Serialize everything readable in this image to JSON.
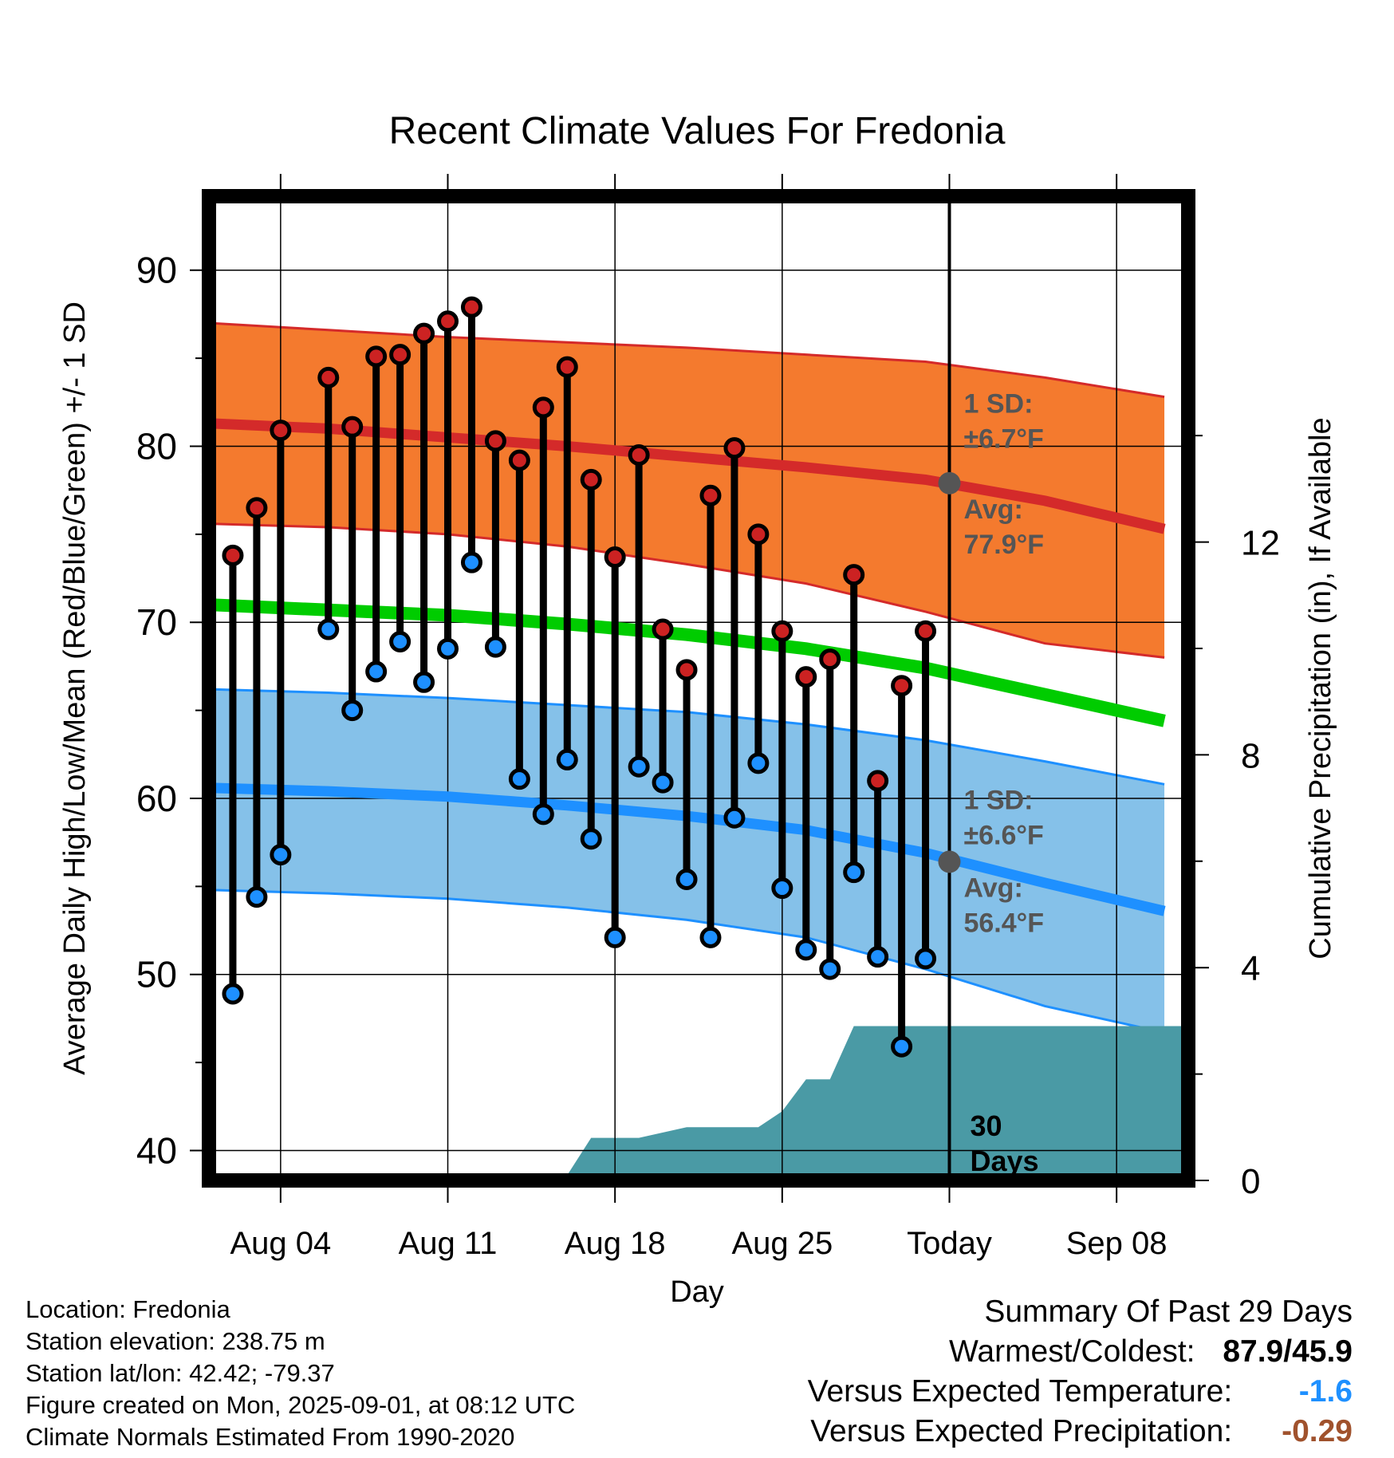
{
  "chart_data": {
    "type": "line",
    "title": "Recent Climate Values For Fredonia",
    "xlabel": "Day",
    "ylabel": "Average Daily High/Low/Mean (Red/Blue/Green) +/- 1 SD",
    "y2label": "Cumulative Precipitation (in), If Available",
    "ylim": [
      38.3,
      94.2
    ],
    "y_ticks": [
      "40",
      "50",
      "60",
      "70",
      "80",
      "90"
    ],
    "y2lim": [
      0,
      18.5
    ],
    "y2_ticks": [
      "0",
      "4",
      "8",
      "12"
    ],
    "x_range": [
      "2025-08-01",
      "2025-09-11"
    ],
    "x_ticks": [
      {
        "date": "2025-08-04",
        "label": "Aug 04"
      },
      {
        "date": "2025-08-11",
        "label": "Aug 11"
      },
      {
        "date": "2025-08-18",
        "label": "Aug 18"
      },
      {
        "date": "2025-08-25",
        "label": "Aug 25"
      },
      {
        "date": "2025-09-01",
        "label": "Today"
      },
      {
        "date": "2025-09-08",
        "label": "Sep 08"
      }
    ],
    "grid": true,
    "today": "2025-09-01",
    "today_label": "30\nDays",
    "normals": {
      "dates": [
        "2025-08-01",
        "2025-08-06",
        "2025-08-11",
        "2025-08-16",
        "2025-08-21",
        "2025-08-26",
        "2025-08-31",
        "2025-09-05",
        "2025-09-10"
      ],
      "high_mean": [
        81.3,
        81.0,
        80.5,
        80.0,
        79.4,
        78.8,
        78.1,
        76.9,
        75.3
      ],
      "high_upper": [
        87.0,
        86.6,
        86.2,
        85.9,
        85.6,
        85.2,
        84.8,
        83.9,
        82.8
      ],
      "high_lower": [
        75.6,
        75.4,
        75.0,
        74.3,
        73.3,
        72.2,
        70.6,
        68.8,
        68.0
      ],
      "low_mean": [
        60.6,
        60.4,
        60.1,
        59.6,
        59.0,
        58.2,
        56.9,
        55.2,
        53.6
      ],
      "low_upper": [
        66.2,
        66.0,
        65.7,
        65.3,
        64.9,
        64.2,
        63.3,
        62.1,
        60.8
      ],
      "low_lower": [
        54.8,
        54.6,
        54.3,
        53.8,
        53.1,
        52.1,
        50.3,
        48.2,
        46.7
      ],
      "mean": [
        71.0,
        70.7,
        70.4,
        69.9,
        69.3,
        68.5,
        67.4,
        65.9,
        64.4
      ],
      "high_sd_label": "1 SD:",
      "high_sd_value": "±6.7°F",
      "high_avg_label": "Avg:",
      "high_avg_value": "77.9°F",
      "high_avg_today": 77.9,
      "low_sd_label": "1 SD:",
      "low_sd_value": "±6.6°F",
      "low_avg_label": "Avg:",
      "low_avg_value": "56.4°F",
      "low_avg_today": 56.4
    },
    "observed": {
      "dates": [
        "2025-08-02",
        "2025-08-03",
        "2025-08-04",
        "2025-08-06",
        "2025-08-07",
        "2025-08-08",
        "2025-08-09",
        "2025-08-10",
        "2025-08-11",
        "2025-08-12",
        "2025-08-13",
        "2025-08-14",
        "2025-08-15",
        "2025-08-16",
        "2025-08-17",
        "2025-08-18",
        "2025-08-19",
        "2025-08-20",
        "2025-08-21",
        "2025-08-22",
        "2025-08-23",
        "2025-08-24",
        "2025-08-25",
        "2025-08-26",
        "2025-08-27",
        "2025-08-28",
        "2025-08-29",
        "2025-08-30",
        "2025-08-31"
      ],
      "high": [
        73.8,
        76.5,
        80.9,
        83.9,
        81.1,
        85.1,
        85.2,
        86.4,
        87.1,
        87.9,
        80.3,
        79.2,
        82.2,
        84.5,
        78.1,
        73.7,
        79.5,
        69.6,
        67.3,
        77.2,
        79.9,
        75.0,
        69.5,
        66.9,
        67.9,
        72.7,
        61.0,
        66.4,
        69.5
      ],
      "low": [
        48.9,
        54.4,
        56.8,
        69.6,
        65.0,
        67.2,
        68.9,
        66.6,
        68.5,
        73.4,
        68.6,
        61.1,
        59.1,
        62.2,
        57.7,
        52.1,
        61.8,
        60.9,
        55.4,
        52.1,
        58.9,
        62.0,
        54.9,
        51.4,
        50.3,
        55.8,
        51.0,
        45.9,
        50.9
      ]
    },
    "precip": {
      "dates": [
        "2025-08-12",
        "2025-08-13",
        "2025-08-16",
        "2025-08-17",
        "2025-08-19",
        "2025-08-21",
        "2025-08-24",
        "2025-08-25",
        "2025-08-26",
        "2025-08-27",
        "2025-08-28",
        "2025-09-01",
        "2025-09-10"
      ],
      "cumulative": [
        0.0,
        0.1,
        0.1,
        0.8,
        0.8,
        1.0,
        1.0,
        1.3,
        1.9,
        1.9,
        2.9,
        2.9,
        2.9
      ]
    }
  },
  "footer": {
    "location": "Location: Fredonia",
    "elevation": "Station elevation: 238.75 m",
    "latlon": "Station lat/lon: 42.42; -79.37",
    "created": "Figure created on Mon, 2025-09-01, at 08:12 UTC",
    "normals_period": "Climate Normals Estimated From 1990-2020"
  },
  "summary": {
    "title": "Summary Of Past 29 Days",
    "warm_cold_label": "Warmest/Coldest:",
    "warm_cold_value": "87.9/45.9",
    "temp_label": "Versus Expected Temperature:",
    "temp_value": "-1.6",
    "precip_label": "Versus Expected Precipitation:",
    "precip_value": "-0.29"
  },
  "colors": {
    "high_band": "#f47a2e",
    "high_line": "#d42a2a",
    "low_band": "#85c1e9",
    "low_line": "#1e90ff",
    "mean_line": "#00cc00",
    "precip_fill": "#4a9aa5",
    "high_marker": "#cc2222",
    "low_marker": "#1e90ff",
    "annotation": "#555555",
    "temp_value": "#1e90ff",
    "precip_value": "#a0522d"
  }
}
